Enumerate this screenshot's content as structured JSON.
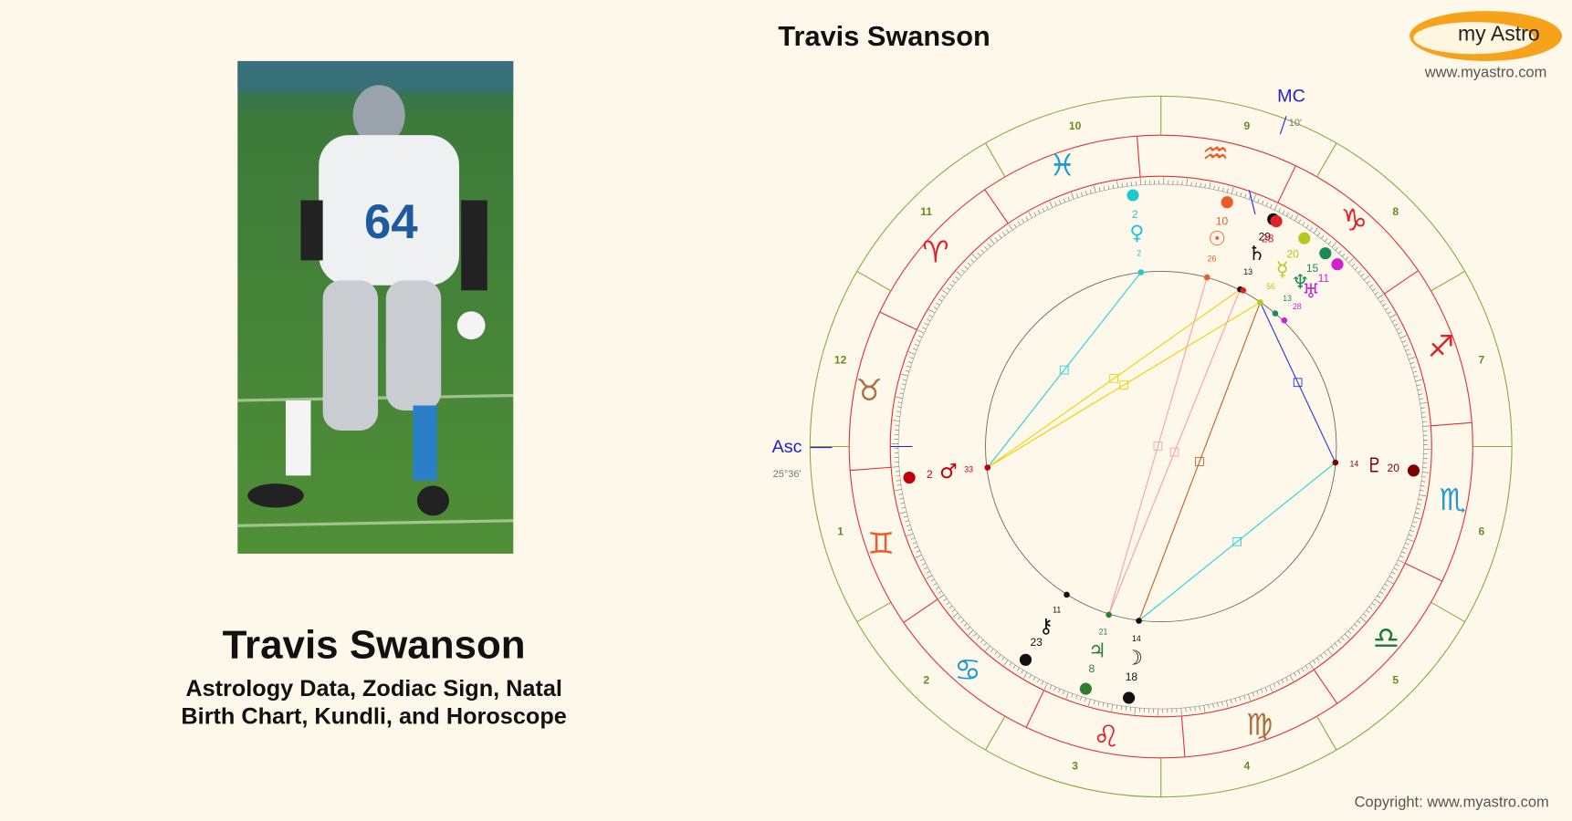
{
  "header": {
    "title": "Travis Swanson",
    "logo": "my Astro",
    "url": "www.myastro.com"
  },
  "profile": {
    "name": "Travis Swanson",
    "subtitle": [
      "Astrology Data, Zodiac Sign, Natal",
      "Birth Chart, Kundli, and Horoscope"
    ]
  },
  "wheel": {
    "signs": [
      "♈︎",
      "♉︎",
      "♊︎",
      "♋︎",
      "♌︎",
      "♍︎",
      "♎︎",
      "♏︎",
      "♐︎",
      "♑︎",
      "♒︎",
      "♓︎"
    ],
    "houses": [
      1,
      2,
      3,
      4,
      5,
      6,
      7,
      8,
      9,
      10,
      11,
      12
    ],
    "mc": {
      "label": "MC",
      "degree": "10'"
    },
    "asc": {
      "label": "Asc",
      "degree": "25°36'"
    },
    "planets": [
      {
        "glyph": "☉",
        "degree": 10,
        "minute": 26
      },
      {
        "glyph": "☽",
        "degree": 18,
        "minute": 14
      },
      {
        "glyph": "☿",
        "degree": 20,
        "minute": 56
      },
      {
        "glyph": "♀",
        "degree": 2,
        "minute": 2
      },
      {
        "glyph": "♂",
        "degree": 2,
        "minute": 33
      },
      {
        "glyph": "♃",
        "degree": 8,
        "minute": 21
      },
      {
        "glyph": "♄",
        "degree": 29,
        "minute": 13
      },
      {
        "glyph": "♅",
        "degree": 11,
        "minute": 28
      },
      {
        "glyph": "♆",
        "degree": 15,
        "minute": 13
      },
      {
        "glyph": "♇",
        "degree": 20,
        "minute": 14
      },
      {
        "glyph": "⚷",
        "degree": 23,
        "minute": 11
      },
      {
        "degree": 28
      }
    ]
  },
  "footer": {
    "copyright": "Copyright: www.myastro.com"
  }
}
